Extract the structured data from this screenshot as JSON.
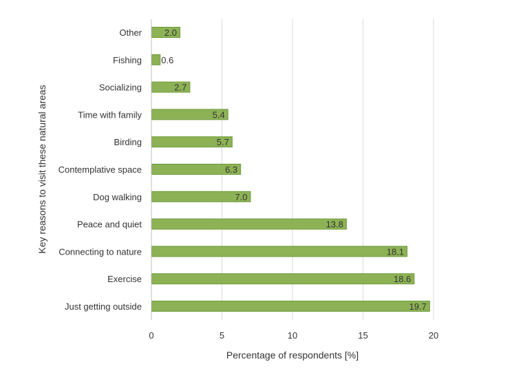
{
  "chart_data": {
    "type": "bar",
    "orientation": "horizontal",
    "categories": [
      "Other",
      "Fishing",
      "Socializing",
      "Time with family",
      "Birding",
      "Contemplative space",
      "Dog walking",
      "Peace and quiet",
      "Connecting to nature",
      "Exercise",
      "Just getting outside"
    ],
    "values": [
      2.0,
      0.6,
      2.7,
      5.4,
      5.7,
      6.3,
      7.0,
      13.8,
      18.1,
      18.6,
      19.7
    ],
    "data_labels": [
      "2.0",
      "0.6",
      "2.7",
      "5.4",
      "5.7",
      "6.3",
      "7.0",
      "13.8",
      "18.1",
      "18.6",
      "19.7"
    ],
    "title": "",
    "xlabel": "Percentage of respondents [%]",
    "ylabel": "Key reasons to visit these natural areas",
    "xlim": [
      0,
      20
    ],
    "x_ticks": [
      "0",
      "5",
      "10",
      "15",
      "20"
    ],
    "grid": "vertical",
    "legend": "none",
    "bar_color": "#8db255",
    "bar_edge_color": "#6f9a3c",
    "grid_color": "#d9d9d9"
  }
}
